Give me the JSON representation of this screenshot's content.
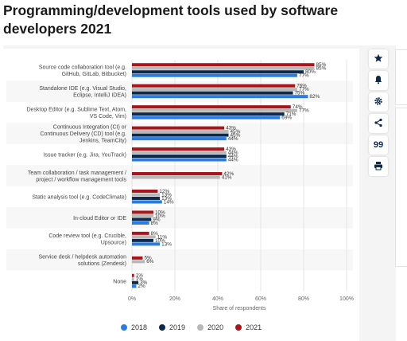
{
  "page": {
    "title": "Programming/development tools used by software developers 2021"
  },
  "toolbar": {
    "buttons": [
      {
        "name": "star-icon",
        "glyph": "star"
      },
      {
        "name": "bell-icon",
        "glyph": "bell"
      },
      {
        "name": "gear-icon",
        "glyph": "gear"
      },
      {
        "name": "share-icon",
        "glyph": "share"
      },
      {
        "name": "quote-icon",
        "glyph": "quote",
        "text": "99"
      },
      {
        "name": "print-icon",
        "glyph": "print"
      }
    ]
  },
  "colors": {
    "2018": "#2b7be0",
    "2019": "#0d2a4d",
    "2020": "#b8b8b8",
    "2021": "#a8161c",
    "grid": "#e6e6e6",
    "axis_text": "#666666"
  },
  "chart_data": {
    "type": "bar",
    "orientation": "horizontal",
    "xlabel": "Share of respondents",
    "xlim": [
      0,
      100
    ],
    "xticks": [
      "0%",
      "20%",
      "40%",
      "60%",
      "80%",
      "100%"
    ],
    "grid": true,
    "legend_position": "bottom",
    "categories": [
      [
        "Source code collaboration tool (e.g.",
        "GitHub, GitLab, Bitbucket)"
      ],
      [
        "Standalone IDE (e.g. Visual Studio,",
        "Eclipse, IntelliJ IDEA)"
      ],
      [
        "Desktop Editor (e.g. Sublime Text, Atom,",
        "VS Code, Vim)"
      ],
      [
        "Continuous Integration (CI) or",
        "Continuous Delivery (CD) tool (e.g.",
        "Jenkins, TeamCity)"
      ],
      [
        "Issue tracker (e.g. Jira, YouTrack)"
      ],
      [
        "Team collaboration / task management /",
        "project / workflow management tools"
      ],
      [
        "Static analysis tool (e.g. CodeClimate)"
      ],
      [
        "In-cloud Editor or IDE"
      ],
      [
        "Code review tool (e.g. Crucible,",
        "Upsource)"
      ],
      [
        "Service desk / helpdesk automation",
        "solutions (Zendesk)"
      ],
      [
        "None"
      ]
    ],
    "series": [
      {
        "name": "2021",
        "values": [
          85,
          76,
          74,
          43,
          43,
          42,
          12,
          10,
          8,
          5,
          1
        ]
      },
      {
        "name": "2020",
        "values": [
          85,
          77,
          77,
          45,
          44,
          41,
          13,
          10,
          11,
          6,
          1
        ]
      },
      {
        "name": "2019",
        "values": [
          80,
          75,
          71,
          45,
          44,
          null,
          13,
          9,
          10,
          null,
          3
        ]
      },
      {
        "name": "2018",
        "values": [
          77,
          82,
          69,
          44,
          44,
          null,
          14,
          8,
          13,
          null,
          2
        ]
      }
    ]
  },
  "legend": {
    "items": [
      {
        "label": "2018",
        "color": "#2b7be0"
      },
      {
        "label": "2019",
        "color": "#0d2a4d"
      },
      {
        "label": "2020",
        "color": "#b8b8b8"
      },
      {
        "label": "2021",
        "color": "#a8161c"
      }
    ]
  }
}
